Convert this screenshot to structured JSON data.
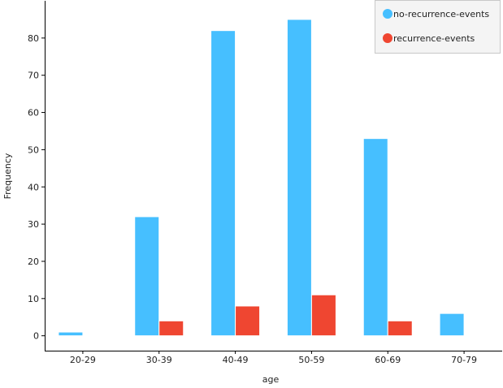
{
  "chart_data": {
    "type": "bar",
    "title": "",
    "xlabel": "age",
    "ylabel": "Frequency",
    "categories": [
      "20-29",
      "30-39",
      "40-49",
      "50-59",
      "60-69",
      "70-79"
    ],
    "series": [
      {
        "name": "no-recurrence-events",
        "color": "#46bfff",
        "values": [
          1,
          32,
          82,
          85,
          53,
          6
        ]
      },
      {
        "name": "recurrence-events",
        "color": "#ef4631",
        "values": [
          0,
          4,
          8,
          11,
          4,
          0
        ]
      }
    ],
    "ylim": [
      -4,
      90
    ],
    "yticks": [
      0,
      10,
      20,
      30,
      40,
      50,
      60,
      70,
      80
    ],
    "grid": false,
    "legend_position": "top-right"
  }
}
